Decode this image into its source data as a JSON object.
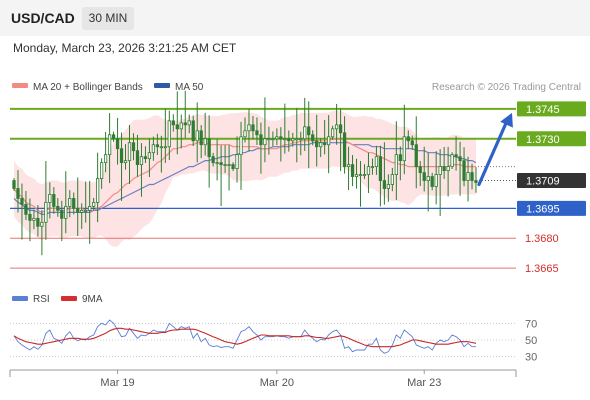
{
  "header": {
    "symbol": "USD/CAD",
    "timeframe": "30 MIN"
  },
  "datetime": "Monday, March 23, 2026 3:21:25 AM CET",
  "legend": {
    "ma20_bb": "MA 20 + Bollinger Bands",
    "ma50": "MA 50",
    "credit": "Research © 2026 Trading Central",
    "rsi": "RSI",
    "ma9": "9MA"
  },
  "colors": {
    "candle": "#2e7d32",
    "bollinger_fill": "#fde3e3",
    "ma20": "#f28b82",
    "ma50": "#6a7fc1",
    "resistance": "#6aaa1e",
    "pivot": "#2f62c8",
    "support": "#e57373",
    "current_price_box": "#333333",
    "rsi_line": "#5b7fd6",
    "rsi_ma": "#c62828",
    "arrow": "#2f62c8"
  },
  "chart_data": [
    {
      "type": "candlestick",
      "xaxis_labels": [
        "Mar 19",
        "Mar 20",
        "Mar 23"
      ],
      "yrange": [
        1.3658,
        1.3752
      ],
      "current_price": "1.3709",
      "levels": [
        {
          "value": "1.3745",
          "role": "resistance"
        },
        {
          "value": "1.3730",
          "role": "resistance"
        },
        {
          "value": "1.3695",
          "role": "pivot"
        },
        {
          "value": "1.3680",
          "role": "support"
        },
        {
          "value": "1.3665",
          "role": "support"
        }
      ],
      "target_arrow": {
        "from": 1.3707,
        "to": 1.3743
      },
      "closes": [
        1.3705,
        1.37,
        1.3697,
        1.3692,
        1.3689,
        1.369,
        1.3686,
        1.3688,
        1.3698,
        1.3702,
        1.3696,
        1.3694,
        1.369,
        1.3696,
        1.37,
        1.3695,
        1.3693,
        1.3694,
        1.3694,
        1.3696,
        1.3698,
        1.371,
        1.3718,
        1.3722,
        1.3732,
        1.373,
        1.3725,
        1.3718,
        1.3719,
        1.3728,
        1.3724,
        1.3717,
        1.3721,
        1.372,
        1.3723,
        1.3727,
        1.3726,
        1.3726,
        1.3726,
        1.3739,
        1.3737,
        1.3735,
        1.3738,
        1.3737,
        1.3739,
        1.3729,
        1.3734,
        1.3727,
        1.373,
        1.3721,
        1.3718,
        1.3718,
        1.3717,
        1.3717,
        1.3717,
        1.3715,
        1.3722,
        1.3731,
        1.3734,
        1.3737,
        1.3734,
        1.3732,
        1.3727,
        1.373,
        1.373,
        1.373,
        1.3731,
        1.373,
        1.373,
        1.3729,
        1.373,
        1.373,
        1.373,
        1.3736,
        1.3732,
        1.3729,
        1.3726,
        1.3728,
        1.3727,
        1.3731,
        1.3735,
        1.3737,
        1.3733,
        1.3716,
        1.3717,
        1.3711,
        1.3712,
        1.3712,
        1.3712,
        1.3716,
        1.3716,
        1.3721,
        1.3709,
        1.3705,
        1.3707,
        1.3712,
        1.3722,
        1.3719,
        1.3731,
        1.3729,
        1.3727,
        1.3716,
        1.3713,
        1.3709,
        1.3711,
        1.3706,
        1.3712,
        1.3716,
        1.3714,
        1.3716,
        1.3722,
        1.3721,
        1.3719,
        1.3709,
        1.3713,
        1.3709,
        1.3708
      ],
      "ma20": [
        1.3705,
        1.3702,
        1.3701,
        1.3698,
        1.3697,
        1.3696,
        1.3694,
        1.3693,
        1.3694,
        1.3695,
        1.3695,
        1.3695,
        1.3694,
        1.3694,
        1.3695,
        1.3695,
        1.3695,
        1.3695,
        1.3694,
        1.3694,
        1.3694,
        1.3695,
        1.3696,
        1.3698,
        1.37,
        1.3702,
        1.3703,
        1.3705,
        1.3707,
        1.3708,
        1.371,
        1.3711,
        1.3712,
        1.3713,
        1.3714,
        1.3716,
        1.3718,
        1.3719,
        1.3721,
        1.3723,
        1.3725,
        1.3725,
        1.3726,
        1.3726,
        1.3727,
        1.3727,
        1.3728,
        1.3728,
        1.3728,
        1.3727,
        1.3727,
        1.3727,
        1.3727,
        1.3727,
        1.3727,
        1.3726,
        1.3726,
        1.3726,
        1.3726,
        1.3726,
        1.3726,
        1.3726,
        1.3725,
        1.3725,
        1.3725,
        1.3725,
        1.3725,
        1.3726,
        1.3727,
        1.3727,
        1.3728,
        1.3728,
        1.3729,
        1.3729,
        1.3729,
        1.3729,
        1.3729,
        1.3729,
        1.3729,
        1.3729,
        1.373,
        1.373,
        1.373,
        1.3729,
        1.3728,
        1.3727,
        1.3726,
        1.3725,
        1.3724,
        1.3723,
        1.3723,
        1.3722,
        1.3721,
        1.372,
        1.3719,
        1.3718,
        1.3718,
        1.3717,
        1.3717,
        1.3716,
        1.3716,
        1.3716,
        1.3716,
        1.3716,
        1.3716,
        1.3716,
        1.3716,
        1.3716,
        1.3716,
        1.3716,
        1.3717,
        1.3717,
        1.3717,
        1.3716,
        1.3716,
        1.3716,
        1.3716
      ],
      "ma50": [
        1.37,
        1.3698,
        1.3697,
        1.3695,
        1.3694,
        1.3694,
        1.3693,
        1.3692,
        1.3692,
        1.3693,
        1.3693,
        1.3693,
        1.3693,
        1.3693,
        1.3693,
        1.3693,
        1.3693,
        1.3693,
        1.3693,
        1.3693,
        1.3694,
        1.3694,
        1.3695,
        1.3696,
        1.3697,
        1.3698,
        1.3699,
        1.37,
        1.3701,
        1.3702,
        1.3703,
        1.3704,
        1.3705,
        1.3706,
        1.3707,
        1.3707,
        1.3708,
        1.3709,
        1.371,
        1.3711,
        1.3712,
        1.3713,
        1.3714,
        1.3715,
        1.3716,
        1.3716,
        1.3717,
        1.3718,
        1.3719,
        1.3719,
        1.372,
        1.372,
        1.3721,
        1.3721,
        1.3721,
        1.3722,
        1.3722,
        1.3723,
        1.3723,
        1.3724,
        1.3724,
        1.3725,
        1.3725,
        1.3725,
        1.3725,
        1.3726,
        1.3726,
        1.3726,
        1.3726,
        1.3726,
        1.3727,
        1.3727,
        1.3727,
        1.3727,
        1.3727,
        1.3728,
        1.3728,
        1.3728,
        1.3728,
        1.3728,
        1.3728,
        1.3728,
        1.3728,
        1.3728,
        1.3728,
        1.3727,
        1.3727,
        1.3727,
        1.3727,
        1.3727,
        1.3726,
        1.3726,
        1.3726,
        1.3725,
        1.3725,
        1.3725,
        1.3725,
        1.3725,
        1.3725,
        1.3725,
        1.3725,
        1.3724,
        1.3724,
        1.3724,
        1.3723,
        1.3723,
        1.3723,
        1.3722,
        1.3722,
        1.3722,
        1.3721,
        1.3721,
        1.372,
        1.372,
        1.3719,
        1.3719,
        1.3718
      ]
    },
    {
      "type": "line",
      "name": "RSI",
      "yticks": [
        "70",
        "50",
        "30"
      ],
      "yrange": [
        20,
        80
      ],
      "rsi": [
        55,
        48,
        44,
        41,
        38,
        42,
        39,
        44,
        58,
        62,
        52,
        50,
        46,
        55,
        60,
        52,
        49,
        51,
        50,
        54,
        56,
        66,
        70,
        68,
        74,
        70,
        62,
        54,
        55,
        64,
        58,
        52,
        56,
        55,
        58,
        62,
        60,
        60,
        60,
        70,
        66,
        62,
        66,
        64,
        66,
        52,
        58,
        48,
        52,
        44,
        42,
        43,
        41,
        42,
        42,
        40,
        50,
        60,
        62,
        66,
        60,
        56,
        50,
        54,
        54,
        54,
        55,
        54,
        54,
        52,
        54,
        54,
        54,
        62,
        56,
        52,
        48,
        51,
        50,
        56,
        60,
        62,
        56,
        40,
        42,
        36,
        38,
        38,
        38,
        45,
        45,
        52,
        38,
        34,
        36,
        44,
        56,
        52,
        62,
        58,
        54,
        44,
        42,
        40,
        42,
        38,
        46,
        50,
        48,
        50,
        56,
        54,
        50,
        42,
        46,
        42,
        42
      ],
      "ma9": [
        55,
        52,
        50,
        48,
        47,
        46,
        45,
        45,
        46,
        47,
        48,
        49,
        50,
        51,
        52,
        52,
        52,
        51,
        51,
        51,
        52,
        54,
        56,
        58,
        61,
        63,
        64,
        64,
        63,
        63,
        62,
        61,
        60,
        59,
        58,
        58,
        58,
        59,
        59,
        61,
        62,
        62,
        63,
        63,
        63,
        63,
        62,
        60,
        58,
        56,
        54,
        52,
        50,
        48,
        47,
        46,
        45,
        46,
        48,
        50,
        52,
        54,
        56,
        56,
        55,
        55,
        55,
        55,
        55,
        55,
        54,
        54,
        54,
        55,
        55,
        54,
        53,
        53,
        52,
        52,
        53,
        54,
        55,
        54,
        52,
        50,
        48,
        46,
        44,
        43,
        42,
        42,
        42,
        42,
        42,
        42,
        43,
        44,
        46,
        48,
        50,
        50,
        49,
        48,
        47,
        46,
        45,
        45,
        45,
        45,
        46,
        47,
        48,
        48,
        48,
        47,
        46
      ]
    }
  ]
}
